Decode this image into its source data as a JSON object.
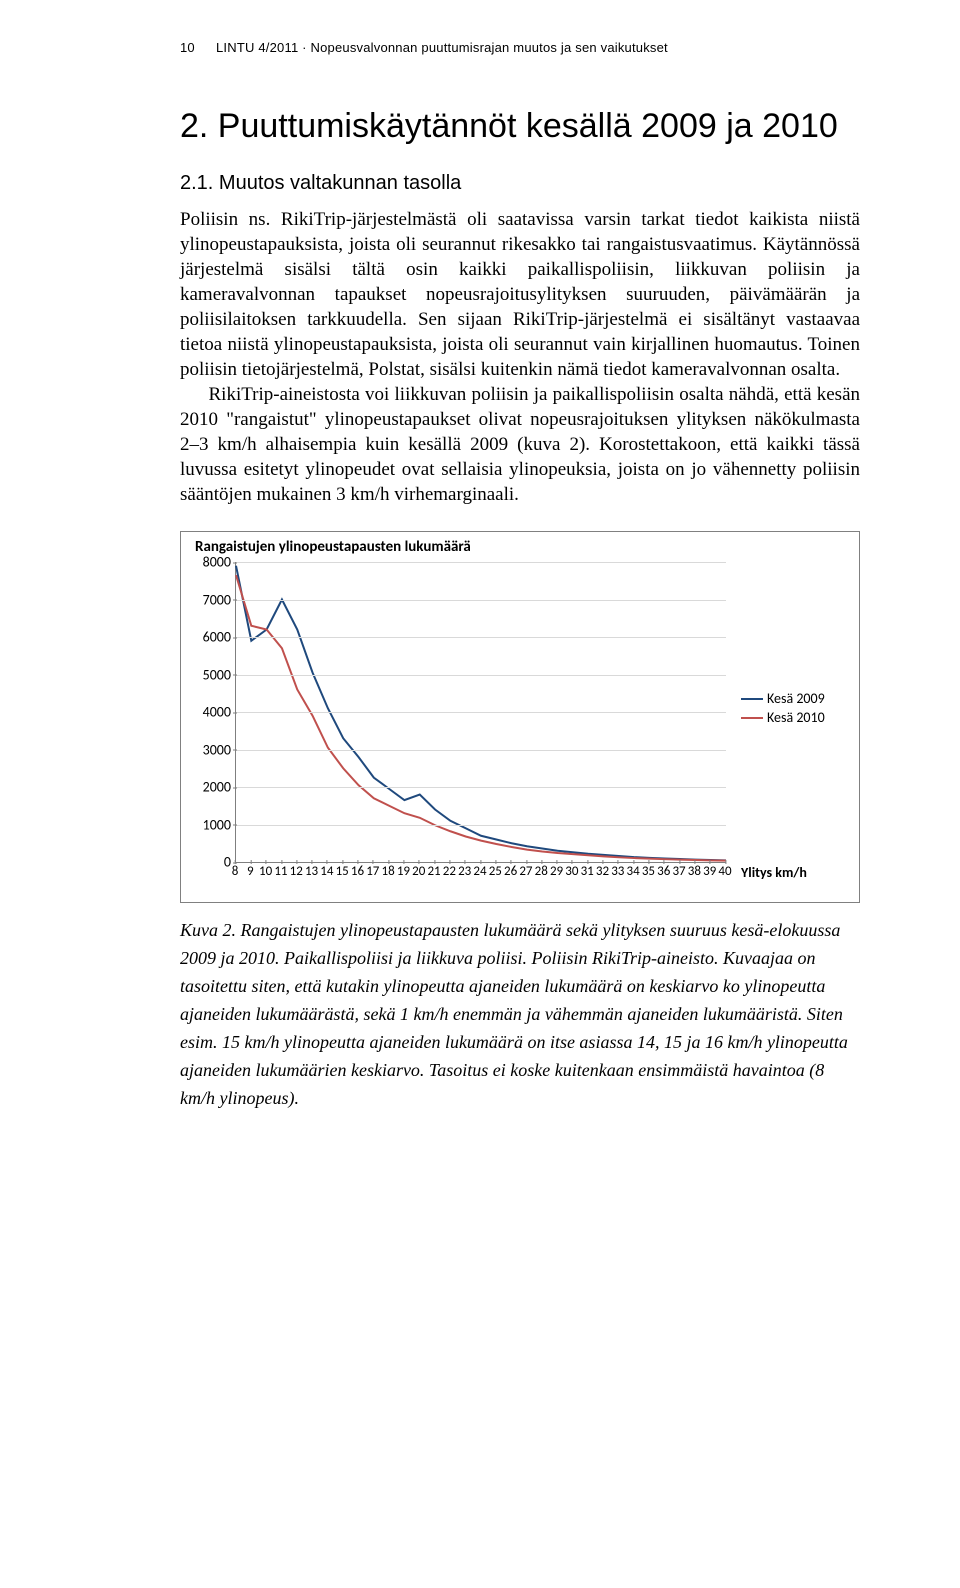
{
  "header": {
    "page_number": "10",
    "running_title": "LINTU 4/2011 · Nopeusvalvonnan puuttumisrajan muutos ja sen vaikutukset"
  },
  "headings": {
    "h1": "2. Puuttumiskäytännöt kesällä 2009 ja 2010",
    "h2": "2.1. Muutos valtakunnan tasolla"
  },
  "paragraphs": {
    "p1": "Poliisin ns. RikiTrip-järjestelmästä oli saatavissa varsin tarkat tiedot kaikista niistä ylinopeustapauksista, joista oli seurannut rikesakko tai rangaistusvaatimus. Käytännössä järjestelmä sisälsi tältä osin kaikki paikallispoliisin, liikkuvan poliisin ja kameravalvonnan tapaukset nopeusrajoitusylityksen suuruuden, päivämäärän ja poliisilaitoksen tarkkuudella. Sen sijaan RikiTrip-järjestelmä ei sisältänyt vastaavaa tietoa niistä ylinopeustapauksista, joista oli seurannut vain kirjallinen huomautus. Toinen poliisin tietojärjestelmä, Polstat, sisälsi kuitenkin nämä tiedot kameravalvonnan osalta.",
    "p2": "RikiTrip-aineistosta voi liikkuvan poliisin ja paikallispoliisin osalta nähdä, että kesän 2010 \"rangaistut\" ylinopeustapaukset olivat nopeusrajoituksen ylityksen näkökulmasta 2–3 km/h alhaisempia kuin kesällä 2009 (kuva 2). Korostettakoon, että kaikki tässä luvussa esitetyt ylinopeudet ovat sellaisia ylinopeuksia, joista on jo vähennetty poliisin sääntöjen mukainen 3 km/h virhemarginaali."
  },
  "chart": {
    "title": "Rangaistujen ylinopeustapausten lukumäärä",
    "xlabel": "Ylitys km/h",
    "x_min": 8,
    "x_max": 40,
    "x_ticks": [
      8,
      9,
      10,
      11,
      12,
      13,
      14,
      15,
      16,
      17,
      18,
      19,
      20,
      21,
      22,
      23,
      24,
      25,
      26,
      27,
      28,
      29,
      30,
      31,
      32,
      33,
      34,
      35,
      36,
      37,
      38,
      39,
      40
    ],
    "y_min": 0,
    "y_max": 8000,
    "y_ticks": [
      0,
      1000,
      2000,
      3000,
      4000,
      5000,
      6000,
      7000,
      8000
    ],
    "grid_color": "#d9d9d9",
    "axis_color": "#7f7f7f",
    "background_color": "#ffffff",
    "series": [
      {
        "name": "Kesä 2009",
        "color": "#1f497d",
        "width": 2,
        "x": [
          8,
          9,
          10,
          11,
          12,
          13,
          14,
          15,
          16,
          17,
          18,
          19,
          20,
          21,
          22,
          23,
          24,
          25,
          26,
          27,
          28,
          29,
          30,
          31,
          32,
          33,
          34,
          35,
          36,
          37,
          38,
          39,
          40
        ],
        "y": [
          7900,
          5900,
          6200,
          7000,
          6200,
          5050,
          4100,
          3300,
          2800,
          2250,
          1950,
          1650,
          1800,
          1400,
          1100,
          900,
          700,
          600,
          500,
          420,
          360,
          300,
          260,
          220,
          190,
          160,
          130,
          110,
          95,
          80,
          65,
          55,
          45
        ]
      },
      {
        "name": "Kesä 2010",
        "color": "#c0504d",
        "width": 2,
        "x": [
          8,
          9,
          10,
          11,
          12,
          13,
          14,
          15,
          16,
          17,
          18,
          19,
          20,
          21,
          22,
          23,
          24,
          25,
          26,
          27,
          28,
          29,
          30,
          31,
          32,
          33,
          34,
          35,
          36,
          37,
          38,
          39,
          40
        ],
        "y": [
          7650,
          6300,
          6200,
          5700,
          4600,
          3900,
          3050,
          2500,
          2050,
          1700,
          1500,
          1300,
          1180,
          980,
          820,
          680,
          570,
          480,
          400,
          330,
          280,
          240,
          210,
          180,
          150,
          125,
          105,
          90,
          75,
          62,
          52,
          44,
          38
        ]
      }
    ],
    "legend": {
      "items": [
        {
          "label": "Kesä 2009",
          "color": "#1f497d"
        },
        {
          "label": "Kesä 2010",
          "color": "#c0504d"
        }
      ]
    }
  },
  "caption": "Kuva 2. Rangaistujen ylinopeustapausten lukumäärä sekä ylityksen suuruus kesä-elokuussa 2009 ja 2010. Paikallispoliisi ja liikkuva poliisi. Poliisin RikiTrip-aineisto. Kuvaajaa on tasoitettu siten, että kutakin ylinopeutta ajaneiden lukumäärä on keskiarvo ko ylinopeutta ajaneiden lukumäärästä, sekä 1 km/h enemmän ja vähemmän ajaneiden lukumääristä. Siten esim. 15 km/h ylinopeutta ajaneiden lukumäärä on itse asiassa 14, 15 ja 16 km/h ylinopeutta ajaneiden lukumäärien keskiarvo. Tasoitus ei koske kuitenkaan ensimmäistä havaintoa (8 km/h ylinopeus)."
}
